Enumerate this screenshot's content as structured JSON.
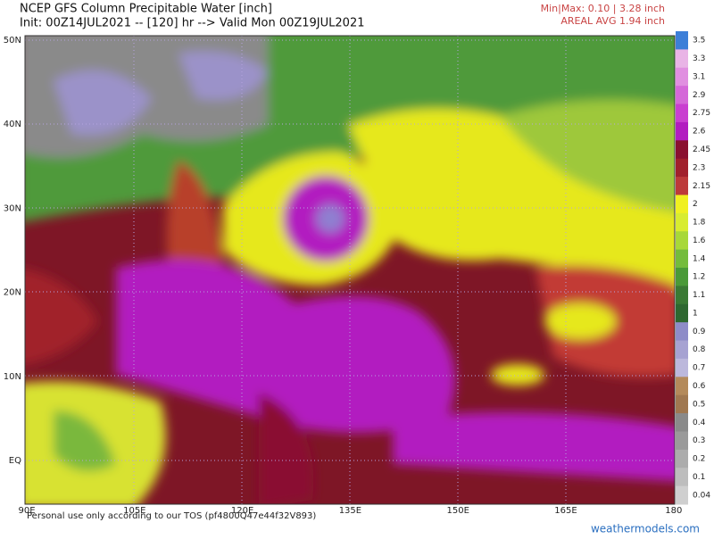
{
  "header": {
    "title": "NCEP GFS Column Precipitable Water [inch]",
    "subtitle": "Init: 00Z14JUL2021 -- [120] hr --> Valid Mon 00Z19JUL2021",
    "minmax": "Min|Max: 0.10 | 3.28 inch",
    "areal_avg": "AREAL AVG 1.94 inch"
  },
  "map": {
    "lat_labels": [
      "50N",
      "40N",
      "30N",
      "20N",
      "10N",
      "EQ"
    ],
    "lon_labels": [
      "90E",
      "105E",
      "120E",
      "135E",
      "150E",
      "165E",
      "180"
    ],
    "disclaimer": "Personal use only according to our TOS (pf4800Q47e44f32V893)",
    "credit": "weathermodels.com"
  },
  "colorbar": {
    "labels": [
      "3.5",
      "3.3",
      "3.1",
      "2.9",
      "2.75",
      "2.6",
      "2.45",
      "2.3",
      "2.15",
      "2",
      "1.8",
      "1.6",
      "1.4",
      "1.2",
      "1.1",
      "1",
      "0.9",
      "0.8",
      "0.7",
      "0.6",
      "0.5",
      "0.4",
      "0.3",
      "0.2",
      "0.1",
      "0.04"
    ],
    "colors": [
      "#3d7fd8",
      "#e9b4e6",
      "#e08fe0",
      "#d468d8",
      "#c93fd0",
      "#b21cc0",
      "#8a1030",
      "#a1202c",
      "#bd3a3a",
      "#f0f020",
      "#d8ec30",
      "#a8d838",
      "#74bc3c",
      "#4a9a38",
      "#3a7a34",
      "#2e6830",
      "#8e8cc8",
      "#a6a2d2",
      "#bcb8dc",
      "#b48a5a",
      "#a07850",
      "#8a8a8a",
      "#9a9a9a",
      "#acacac",
      "#bdbdbd",
      "#cfcfcf"
    ]
  }
}
